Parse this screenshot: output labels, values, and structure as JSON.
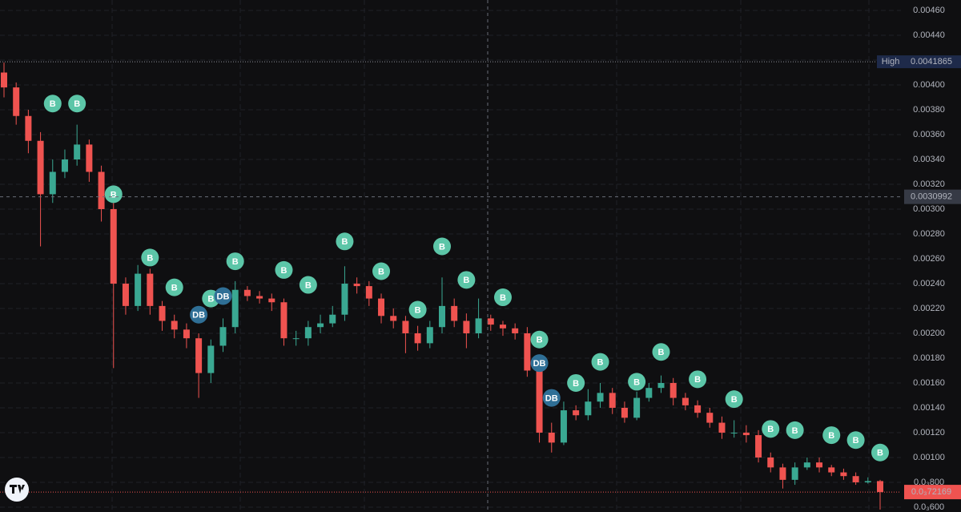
{
  "chart_data": {
    "type": "candlestick",
    "up_color": "#3aa892",
    "down_color": "#ef5350",
    "marker_colors": {
      "B": "#5cc6a8",
      "DB": "#2f6f96"
    },
    "ylim": [
      0.000561,
      0.004684
    ],
    "yticks": [
      {
        "value": 0.0046,
        "label": "0.00460"
      },
      {
        "value": 0.0044,
        "label": "0.00440"
      },
      {
        "value": 0.0042,
        "label": "0.00420"
      },
      {
        "value": 0.004,
        "label": "0.00400"
      },
      {
        "value": 0.0038,
        "label": "0.00380"
      },
      {
        "value": 0.0036,
        "label": "0.00360"
      },
      {
        "value": 0.0034,
        "label": "0.00340"
      },
      {
        "value": 0.0032,
        "label": "0.00320"
      },
      {
        "value": 0.003,
        "label": "0.00300"
      },
      {
        "value": 0.0028,
        "label": "0.00280"
      },
      {
        "value": 0.0026,
        "label": "0.00260"
      },
      {
        "value": 0.0024,
        "label": "0.00240"
      },
      {
        "value": 0.0022,
        "label": "0.00220"
      },
      {
        "value": 0.002,
        "label": "0.00200"
      },
      {
        "value": 0.0018,
        "label": "0.00180"
      },
      {
        "value": 0.0016,
        "label": "0.00160"
      },
      {
        "value": 0.0014,
        "label": "0.00140"
      },
      {
        "value": 0.0012,
        "label": "0.00120"
      },
      {
        "value": 0.001,
        "label": "0.00100"
      },
      {
        "value": 0.0008,
        "label": "0.0₃800"
      },
      {
        "value": 0.0006,
        "label": "0.0₃600"
      }
    ],
    "open": [
      0.0041,
      0.00398,
      0.00375,
      0.00355,
      0.00312,
      0.0033,
      0.0034,
      0.00352,
      0.0033,
      0.003,
      0.0024,
      0.00222,
      0.00248,
      0.00222,
      0.0021,
      0.00203,
      0.00196,
      0.00168,
      0.0019,
      0.00205,
      0.00235,
      0.0023,
      0.00228,
      0.00225,
      0.00196,
      0.00196,
      0.00205,
      0.00208,
      0.00215,
      0.0024,
      0.00238,
      0.00228,
      0.00214,
      0.0021,
      0.002,
      0.00192,
      0.00205,
      0.00222,
      0.0021,
      0.002,
      0.00212,
      0.00207,
      0.00204,
      0.002,
      0.0017,
      0.0012,
      0.00112,
      0.00138,
      0.00134,
      0.00145,
      0.00152,
      0.0014,
      0.00132,
      0.00148,
      0.00156,
      0.0016,
      0.00148,
      0.00142,
      0.00136,
      0.00128,
      0.0012,
      0.0012,
      0.00118,
      0.001,
      0.00092,
      0.00082,
      0.00092,
      0.00096,
      0.00092,
      0.00088,
      0.00085,
      0.0008,
      0.00081
    ],
    "high": [
      0.00418,
      0.00402,
      0.0038,
      0.00362,
      0.0034,
      0.00348,
      0.00368,
      0.00356,
      0.00335,
      0.00305,
      0.00245,
      0.00255,
      0.00252,
      0.00226,
      0.00215,
      0.00208,
      0.002,
      0.00195,
      0.00212,
      0.00242,
      0.00238,
      0.00234,
      0.00232,
      0.00228,
      0.00202,
      0.0021,
      0.00215,
      0.00222,
      0.00254,
      0.00245,
      0.00242,
      0.00232,
      0.0022,
      0.00214,
      0.00206,
      0.0021,
      0.00245,
      0.00228,
      0.00216,
      0.00228,
      0.00215,
      0.0021,
      0.00208,
      0.00205,
      0.00175,
      0.00128,
      0.00145,
      0.00142,
      0.00155,
      0.0016,
      0.00156,
      0.00145,
      0.00153,
      0.0016,
      0.00166,
      0.00164,
      0.00152,
      0.00146,
      0.0014,
      0.00133,
      0.0013,
      0.00126,
      0.00122,
      0.00104,
      0.00095,
      0.00096,
      0.001,
      0.001,
      0.00094,
      0.00091,
      0.00088,
      0.00084,
      0.00082
    ],
    "low": [
      0.0039,
      0.00368,
      0.00345,
      0.0027,
      0.00305,
      0.00325,
      0.00335,
      0.00322,
      0.0029,
      0.00172,
      0.00215,
      0.00218,
      0.00215,
      0.00202,
      0.00196,
      0.00188,
      0.00148,
      0.0016,
      0.00185,
      0.002,
      0.00226,
      0.00224,
      0.00218,
      0.0019,
      0.0019,
      0.0019,
      0.002,
      0.00205,
      0.0021,
      0.00232,
      0.00222,
      0.00208,
      0.00204,
      0.00184,
      0.00186,
      0.00188,
      0.002,
      0.00205,
      0.00188,
      0.00196,
      0.00202,
      0.00198,
      0.00195,
      0.00165,
      0.00112,
      0.00104,
      0.0011,
      0.0013,
      0.0013,
      0.0014,
      0.00135,
      0.00128,
      0.0013,
      0.00145,
      0.00152,
      0.00142,
      0.00138,
      0.00132,
      0.00124,
      0.00115,
      0.00116,
      0.00112,
      0.00096,
      0.00088,
      0.00075,
      0.00078,
      0.0009,
      0.00088,
      0.00085,
      0.00082,
      0.00078,
      0.00079,
      0.00058
    ],
    "close": [
      0.00398,
      0.00375,
      0.00355,
      0.00312,
      0.0033,
      0.0034,
      0.00352,
      0.0033,
      0.003,
      0.0024,
      0.00222,
      0.00248,
      0.00222,
      0.0021,
      0.00203,
      0.00196,
      0.00168,
      0.0019,
      0.00205,
      0.00235,
      0.0023,
      0.00228,
      0.00225,
      0.00196,
      0.00196,
      0.00205,
      0.00208,
      0.00215,
      0.0024,
      0.00238,
      0.00228,
      0.00214,
      0.0021,
      0.002,
      0.00192,
      0.00205,
      0.00222,
      0.0021,
      0.002,
      0.00212,
      0.00207,
      0.00204,
      0.002,
      0.0017,
      0.0012,
      0.00112,
      0.00138,
      0.00134,
      0.00145,
      0.00152,
      0.0014,
      0.00132,
      0.00148,
      0.00156,
      0.0016,
      0.00148,
      0.00142,
      0.00136,
      0.00128,
      0.0012,
      0.0012,
      0.00118,
      0.001,
      0.00092,
      0.00082,
      0.00092,
      0.00096,
      0.00092,
      0.00088,
      0.00085,
      0.0008,
      0.00081,
      0.00072169
    ],
    "markers": [
      {
        "label": "B",
        "index": 4,
        "price": 0.00385
      },
      {
        "label": "B",
        "index": 6,
        "price": 0.00385
      },
      {
        "label": "B",
        "index": 9,
        "price": 0.00312
      },
      {
        "label": "B",
        "index": 12,
        "price": 0.00261
      },
      {
        "label": "B",
        "index": 14,
        "price": 0.00237
      },
      {
        "label": "B",
        "index": 17,
        "price": 0.00228
      },
      {
        "label": "DB",
        "index": 16,
        "price": 0.00215
      },
      {
        "label": "DB",
        "index": 18,
        "price": 0.0023
      },
      {
        "label": "B",
        "index": 19,
        "price": 0.00258
      },
      {
        "label": "B",
        "index": 23,
        "price": 0.00251
      },
      {
        "label": "B",
        "index": 25,
        "price": 0.00239
      },
      {
        "label": "B",
        "index": 28,
        "price": 0.00274
      },
      {
        "label": "B",
        "index": 31,
        "price": 0.0025
      },
      {
        "label": "B",
        "index": 34,
        "price": 0.00219
      },
      {
        "label": "B",
        "index": 36,
        "price": 0.0027
      },
      {
        "label": "B",
        "index": 38,
        "price": 0.00243
      },
      {
        "label": "B",
        "index": 41,
        "price": 0.00229
      },
      {
        "label": "B",
        "index": 44,
        "price": 0.00195
      },
      {
        "label": "DB",
        "index": 44,
        "price": 0.00176
      },
      {
        "label": "DB",
        "index": 45,
        "price": 0.00148
      },
      {
        "label": "B",
        "index": 47,
        "price": 0.0016
      },
      {
        "label": "B",
        "index": 49,
        "price": 0.00177
      },
      {
        "label": "B",
        "index": 52,
        "price": 0.00161
      },
      {
        "label": "B",
        "index": 54,
        "price": 0.00185
      },
      {
        "label": "B",
        "index": 57,
        "price": 0.00163
      },
      {
        "label": "B",
        "index": 60,
        "price": 0.00147
      },
      {
        "label": "B",
        "index": 63,
        "price": 0.00123
      },
      {
        "label": "B",
        "index": 65,
        "price": 0.00122
      },
      {
        "label": "B",
        "index": 68,
        "price": 0.00118
      },
      {
        "label": "B",
        "index": 70,
        "price": 0.00114
      },
      {
        "label": "B",
        "index": 72,
        "price": 0.00104
      }
    ],
    "high_line": {
      "label": "High",
      "price": 0.0041865
    },
    "crosshair_price": 0.0030992,
    "last_price": {
      "value": 0.00072169,
      "label": "0.0₃72169"
    }
  }
}
